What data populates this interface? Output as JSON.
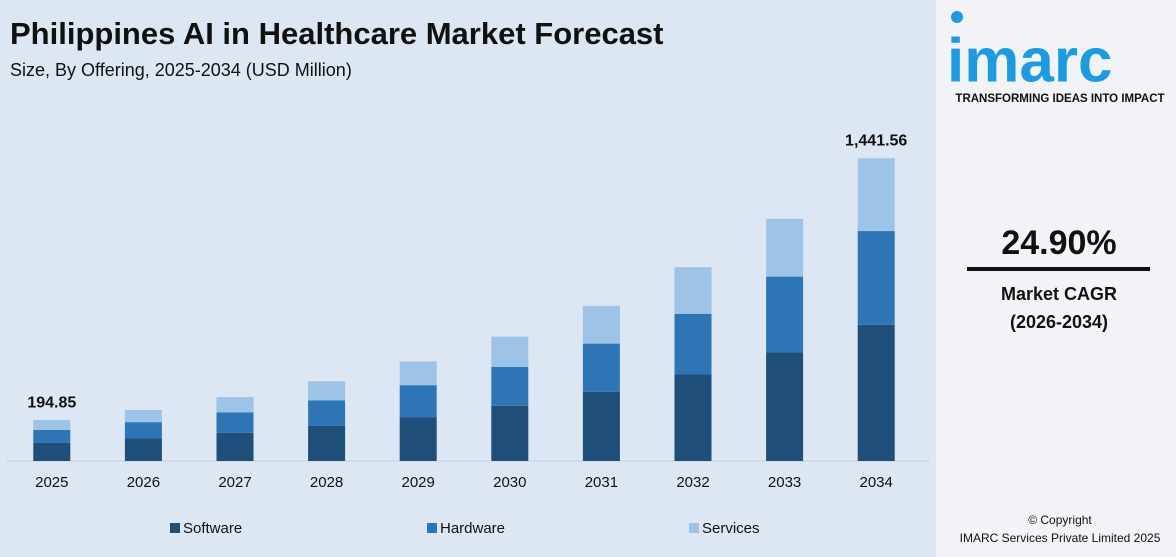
{
  "chart_data": {
    "type": "stacked_bar",
    "title": "Philippines AI in Healthcare Market Forecast",
    "subtitle": "Size, By Offering, 2025-2034 (USD Million)",
    "categories": [
      "2025",
      "2026",
      "2027",
      "2028",
      "2029",
      "2030",
      "2031",
      "2032",
      "2033",
      "2034"
    ],
    "series": [
      {
        "name": "Software",
        "color": "#1f4e79",
        "values": [
          86.0,
          107,
          134,
          167,
          209,
          263,
          330,
          412,
          517,
          649
        ]
      },
      {
        "name": "Hardware",
        "color": "#2e75b6",
        "values": [
          62.4,
          78,
          97,
          122,
          152,
          185,
          229,
          289,
          361,
          446
        ]
      },
      {
        "name": "Services",
        "color": "#9dc3e6",
        "values": [
          46.45,
          58,
          73,
          91,
          113,
          144,
          180,
          222,
          275,
          346.56
        ]
      }
    ],
    "annotations": [
      {
        "category": "2025",
        "value": 194.85,
        "label": "194.85"
      },
      {
        "category": "2034",
        "value": 1441.56,
        "label": "1,441.56"
      }
    ],
    "ylim": [
      0,
      1600
    ]
  },
  "side_panel": {
    "logo": "imarc",
    "tagline": "TRANSFORMING IDEAS INTO IMPACT",
    "cagr": "24.90%",
    "cagr_label": "Market CAGR",
    "cagr_period": "(2026-2034)",
    "copyright": "© Copyright",
    "company": "IMARC Services Private Limited 2025"
  }
}
